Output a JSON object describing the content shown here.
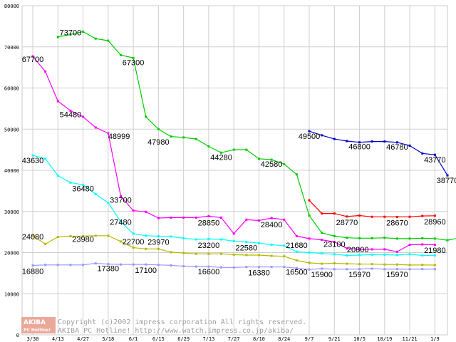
{
  "chart_data": {
    "type": "line",
    "categories": [
      "3/30",
      "4/13",
      "4/27",
      "5/18",
      "6/1",
      "6/15",
      "6/29",
      "7/13",
      "7/27",
      "8/10",
      "8/24",
      "9/7",
      "9/21",
      "10/5",
      "10/19",
      "11/21",
      "1/9"
    ],
    "ylim": [
      0,
      80000
    ],
    "yticks": [
      "0",
      "10000",
      "20000",
      "30000",
      "40000",
      "50000",
      "60000",
      "70000",
      "80000"
    ],
    "grid": true,
    "legend": "none",
    "series": [
      {
        "color": "#00cc00",
        "points": [
          [
            1,
            72400
          ],
          [
            1.5,
            73000
          ],
          [
            2,
            73700
          ],
          [
            2.5,
            72000
          ],
          [
            3,
            71500
          ],
          [
            3.5,
            68000
          ],
          [
            4,
            67300
          ],
          [
            4.5,
            53000
          ],
          [
            5,
            50000
          ],
          [
            5.5,
            48200
          ],
          [
            6,
            47980
          ],
          [
            6.5,
            47600
          ],
          [
            7,
            45800
          ],
          [
            7.5,
            44280
          ],
          [
            8,
            45000
          ],
          [
            8.5,
            45000
          ],
          [
            9,
            42800
          ],
          [
            9.5,
            42580
          ],
          [
            10,
            41500
          ],
          [
            10.5,
            39000
          ],
          [
            11,
            29000
          ],
          [
            11.5,
            24800
          ],
          [
            12,
            24000
          ],
          [
            12.5,
            23600
          ],
          [
            13,
            23500
          ],
          [
            13.5,
            23500
          ],
          [
            14,
            23600
          ],
          [
            14.5,
            23400
          ],
          [
            15,
            23400
          ],
          [
            15.5,
            23500
          ],
          [
            16,
            23400
          ],
          [
            16.5,
            23000
          ],
          [
            17,
            23600
          ]
        ]
      },
      {
        "color": "#ff00ff",
        "points": [
          [
            0,
            67700
          ],
          [
            0.5,
            64000
          ],
          [
            1,
            56800
          ],
          [
            1.5,
            54480
          ],
          [
            2,
            53000
          ],
          [
            2.5,
            50400
          ],
          [
            3,
            48999
          ],
          [
            3.5,
            33700
          ],
          [
            4,
            30200
          ],
          [
            4.5,
            29900
          ],
          [
            5,
            28400
          ],
          [
            5.5,
            28500
          ],
          [
            6,
            28500
          ],
          [
            6.5,
            28500
          ],
          [
            7,
            28850
          ],
          [
            7.5,
            28500
          ],
          [
            8,
            24600
          ],
          [
            8.5,
            28000
          ],
          [
            9,
            27800
          ],
          [
            9.5,
            28400
          ],
          [
            10,
            28000
          ],
          [
            10.5,
            24000
          ],
          [
            11,
            23400
          ],
          [
            11.5,
            23100
          ],
          [
            12,
            22600
          ],
          [
            12.5,
            21000
          ],
          [
            13,
            20800
          ],
          [
            13.5,
            20800
          ],
          [
            14,
            20800
          ],
          [
            14.5,
            20200
          ],
          [
            15,
            21900
          ],
          [
            15.5,
            21980
          ],
          [
            16,
            21900
          ]
        ]
      },
      {
        "color": "#00ffff",
        "points": [
          [
            0,
            43630
          ],
          [
            0.5,
            42800
          ],
          [
            1,
            38700
          ],
          [
            1.5,
            37000
          ],
          [
            2,
            36480
          ],
          [
            2.5,
            34200
          ],
          [
            3,
            32100
          ],
          [
            3.5,
            27480
          ],
          [
            4,
            24600
          ],
          [
            4.5,
            24100
          ],
          [
            5,
            23970
          ],
          [
            5.5,
            23900
          ],
          [
            6,
            23500
          ],
          [
            6.5,
            23200
          ],
          [
            7,
            23300
          ],
          [
            7.5,
            23200
          ],
          [
            8,
            22800
          ],
          [
            8.5,
            22580
          ],
          [
            9,
            22300
          ],
          [
            9.5,
            21900
          ],
          [
            10,
            21680
          ],
          [
            10.5,
            20200
          ],
          [
            11,
            20000
          ],
          [
            11.5,
            19800
          ],
          [
            12,
            19600
          ],
          [
            12.5,
            19300
          ],
          [
            13,
            19400
          ],
          [
            13.5,
            19500
          ],
          [
            14,
            19500
          ],
          [
            14.5,
            19400
          ],
          [
            15,
            19600
          ],
          [
            15.5,
            19300
          ],
          [
            16,
            19300
          ]
        ]
      },
      {
        "color": "#b8b800",
        "points": [
          [
            0,
            24080
          ],
          [
            0.5,
            22100
          ],
          [
            1,
            23800
          ],
          [
            1.5,
            23980
          ],
          [
            2,
            24000
          ],
          [
            2.5,
            24100
          ],
          [
            3,
            24100
          ],
          [
            3.5,
            22700
          ],
          [
            4,
            21200
          ],
          [
            4.5,
            20900
          ],
          [
            5,
            20900
          ],
          [
            5.5,
            20100
          ],
          [
            6,
            19900
          ],
          [
            6.5,
            19700
          ],
          [
            7,
            19700
          ],
          [
            7.5,
            19700
          ],
          [
            8,
            19500
          ],
          [
            8.5,
            19400
          ],
          [
            9,
            19400
          ],
          [
            9.5,
            19200
          ],
          [
            10,
            19100
          ],
          [
            10.5,
            18100
          ],
          [
            11,
            17500
          ],
          [
            11.5,
            17300
          ],
          [
            12,
            17400
          ],
          [
            12.5,
            17300
          ],
          [
            13,
            17200
          ],
          [
            13.5,
            17200
          ],
          [
            14,
            17100
          ],
          [
            14.5,
            17100
          ],
          [
            15,
            16970
          ],
          [
            15.5,
            17000
          ],
          [
            16,
            16970
          ]
        ]
      },
      {
        "color": "#9999ff",
        "points": [
          [
            0,
            16880
          ],
          [
            0.5,
            17000
          ],
          [
            1,
            17000
          ],
          [
            1.5,
            17000
          ],
          [
            2,
            17000
          ],
          [
            2.5,
            17380
          ],
          [
            3,
            17200
          ],
          [
            3.5,
            17100
          ],
          [
            4,
            17100
          ],
          [
            4.5,
            17100
          ],
          [
            5,
            17000
          ],
          [
            5.5,
            16900
          ],
          [
            6,
            16700
          ],
          [
            6.5,
            16600
          ],
          [
            7,
            16600
          ],
          [
            7.5,
            16400
          ],
          [
            8,
            16380
          ],
          [
            8.5,
            16500
          ],
          [
            9,
            16500
          ],
          [
            9.5,
            16500
          ],
          [
            10,
            16500
          ],
          [
            10.5,
            16200
          ],
          [
            11,
            15900
          ],
          [
            11.5,
            16100
          ],
          [
            12,
            15970
          ],
          [
            12.5,
            15970
          ],
          [
            13,
            16000
          ],
          [
            13.5,
            16100
          ],
          [
            14,
            15970
          ],
          [
            14.5,
            16000
          ],
          [
            15,
            15970
          ],
          [
            15.5,
            16000
          ],
          [
            16,
            15970
          ]
        ]
      },
      {
        "color": "#ff0000",
        "points": [
          [
            11,
            32700
          ],
          [
            11.5,
            29500
          ],
          [
            12,
            29500
          ],
          [
            12.5,
            28770
          ],
          [
            13,
            29000
          ],
          [
            13.5,
            28700
          ],
          [
            14,
            28700
          ],
          [
            14.5,
            28670
          ],
          [
            15,
            28700
          ],
          [
            15.5,
            28900
          ],
          [
            16,
            28960
          ]
        ]
      },
      {
        "color": "#0000cc",
        "points": [
          [
            11,
            49500
          ],
          [
            11.5,
            48500
          ],
          [
            12,
            47600
          ],
          [
            12.5,
            47100
          ],
          [
            13,
            46800
          ],
          [
            13.5,
            47000
          ],
          [
            14,
            47000
          ],
          [
            14.5,
            46780
          ],
          [
            15,
            46000
          ],
          [
            15.5,
            44100
          ],
          [
            16,
            43770
          ],
          [
            16.5,
            38770
          ]
        ]
      }
    ],
    "data_labels": [
      {
        "text": "73700",
        "x": 1.5,
        "y": 73700,
        "anchor": "middle",
        "dy": 5
      },
      {
        "text": "67700",
        "x": 0,
        "y": 67700,
        "anchor": "middle",
        "dy": 8
      },
      {
        "text": "67300",
        "x": 4,
        "y": 67300,
        "anchor": "middle",
        "dy": 10
      },
      {
        "text": "54480",
        "x": 1.5,
        "y": 54480,
        "anchor": "middle",
        "dy": 9
      },
      {
        "text": "48999",
        "x": 3,
        "y": 48999,
        "anchor": "start",
        "dy": 8
      },
      {
        "text": "47980",
        "x": 5,
        "y": 47980,
        "anchor": "middle",
        "dy": 10
      },
      {
        "text": "44280",
        "x": 7.5,
        "y": 44280,
        "anchor": "middle",
        "dy": 10
      },
      {
        "text": "42580",
        "x": 9.5,
        "y": 42580,
        "anchor": "middle",
        "dy": 10
      },
      {
        "text": "49500",
        "x": 11,
        "y": 49500,
        "anchor": "middle",
        "dy": 11
      },
      {
        "text": "46800",
        "x": 13,
        "y": 46800,
        "anchor": "middle",
        "dy": 10
      },
      {
        "text": "46780",
        "x": 14.5,
        "y": 46780,
        "anchor": "middle",
        "dy": 10
      },
      {
        "text": "43770",
        "x": 16,
        "y": 43770,
        "anchor": "middle",
        "dy": 11
      },
      {
        "text": "38770",
        "x": 16.5,
        "y": 38770,
        "anchor": "middle",
        "dy": 11
      },
      {
        "text": "43630",
        "x": 0,
        "y": 43630,
        "anchor": "middle",
        "dy": 11
      },
      {
        "text": "36480",
        "x": 2,
        "y": 36480,
        "anchor": "middle",
        "dy": 9
      },
      {
        "text": "33700",
        "x": 3.5,
        "y": 33700,
        "anchor": "middle",
        "dy": 9
      },
      {
        "text": "27480",
        "x": 3.5,
        "y": 27480,
        "anchor": "middle",
        "dy": 4
      },
      {
        "text": "23970",
        "x": 5,
        "y": 23970,
        "anchor": "middle",
        "dy": 12
      },
      {
        "text": "28850",
        "x": 7,
        "y": 28850,
        "anchor": "middle",
        "dy": 13
      },
      {
        "text": "23200",
        "x": 7,
        "y": 23200,
        "anchor": "middle",
        "dy": 12
      },
      {
        "text": "28400",
        "x": 9.5,
        "y": 28400,
        "anchor": "middle",
        "dy": 13
      },
      {
        "text": "22580",
        "x": 8.5,
        "y": 22580,
        "anchor": "middle",
        "dy": 12
      },
      {
        "text": "21680",
        "x": 10.5,
        "y": 21680,
        "anchor": "middle",
        "dy": 3
      },
      {
        "text": "23100",
        "x": 12,
        "y": 23100,
        "anchor": "middle",
        "dy": 10
      },
      {
        "text": "20800",
        "x": 12.5,
        "y": 20800,
        "anchor": "start",
        "dy": 4
      },
      {
        "text": "28770",
        "x": 12.5,
        "y": 28770,
        "anchor": "middle",
        "dy": 12
      },
      {
        "text": "28670",
        "x": 14.5,
        "y": 28670,
        "anchor": "middle",
        "dy": 12
      },
      {
        "text": "28960",
        "x": 16,
        "y": 28960,
        "anchor": "middle",
        "dy": 12
      },
      {
        "text": "21980",
        "x": 16,
        "y": 21980,
        "anchor": "middle",
        "dy": 12
      },
      {
        "text": "24080",
        "x": 0,
        "y": 24080,
        "anchor": "middle",
        "dy": 5
      },
      {
        "text": "23980",
        "x": 2,
        "y": 23980,
        "anchor": "middle",
        "dy": 8
      },
      {
        "text": "22700",
        "x": 4,
        "y": 22700,
        "anchor": "middle",
        "dy": 4
      },
      {
        "text": "16880",
        "x": 0,
        "y": 16880,
        "anchor": "middle",
        "dy": 12
      },
      {
        "text": "17380",
        "x": 3,
        "y": 17380,
        "anchor": "middle",
        "dy": 11
      },
      {
        "text": "17100",
        "x": 4.5,
        "y": 17100,
        "anchor": "middle",
        "dy": 12
      },
      {
        "text": "16600",
        "x": 7,
        "y": 16600,
        "anchor": "middle",
        "dy": 11
      },
      {
        "text": "16380",
        "x": 9,
        "y": 16380,
        "anchor": "middle",
        "dy": 11
      },
      {
        "text": "16500",
        "x": 10.5,
        "y": 16500,
        "anchor": "middle",
        "dy": 11
      },
      {
        "text": "15900",
        "x": 11.5,
        "y": 15900,
        "anchor": "middle",
        "dy": 11
      },
      {
        "text": "15970",
        "x": 13,
        "y": 15970,
        "anchor": "middle",
        "dy": 11
      },
      {
        "text": "15970",
        "x": 14.5,
        "y": 15970,
        "anchor": "middle",
        "dy": 11
      }
    ]
  },
  "credit": {
    "logo_top": "AKIBA",
    "logo_bottom": "PC Hotline!",
    "line1": "Copyright (c)2002 impress corporation All rights reserved.",
    "line2": "AKIBA PC Hotline!  http://www.watch.impress.co.jp/akiba/"
  }
}
